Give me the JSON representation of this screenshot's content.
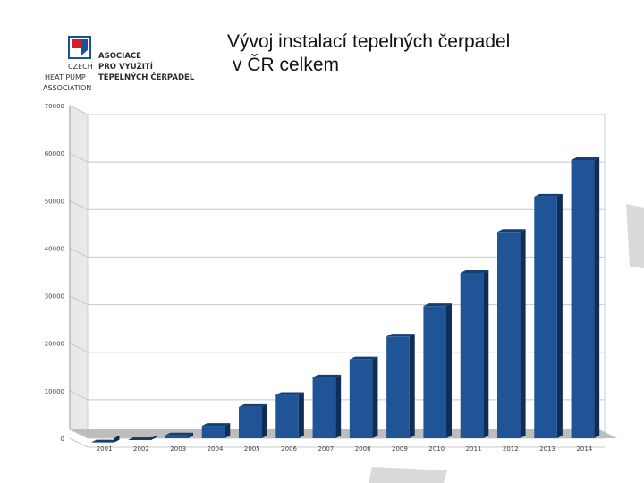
{
  "header": {
    "title_line1": "Vývoj instalací tepelných čerpadel",
    "title_line2": "v ČR celkem"
  },
  "logo": {
    "line1": "ASOCIACE",
    "line2_left": "CZECH",
    "line2_right": "PRO VYUŽITÍ",
    "line3_left": "HEAT PUMP",
    "line3_right": "TEPELNÝCH ČERPADEL",
    "line4_left": "ASSOCIATION"
  },
  "colors": {
    "bar_front": "#1f5597",
    "bar_top": "#163f70",
    "bar_side": "#0f2e55",
    "grid": "#c8c8c8",
    "wall": "#e9e9e9",
    "floor": "#bdbdbd",
    "logo_red": "#d32027",
    "logo_blue": "#1c4f9c"
  },
  "chart_data": {
    "type": "bar",
    "title": "",
    "xlabel": "",
    "ylabel": "",
    "ylim": [
      0,
      70000
    ],
    "yticks": [
      "0",
      "10000",
      "20000",
      "30000",
      "40000",
      "50000",
      "60000",
      "70000"
    ],
    "grid": true,
    "legend": "none",
    "categories": [
      "2001",
      "2002",
      "2003",
      "2004",
      "2005",
      "2006",
      "2007",
      "2008",
      "2009",
      "2010",
      "2011",
      "2012",
      "2013",
      "2014"
    ],
    "values": [
      1000,
      1500,
      2500,
      4500,
      8500,
      11000,
      14700,
      18500,
      23300,
      29700,
      36700,
      45300,
      52700,
      60400
    ]
  }
}
